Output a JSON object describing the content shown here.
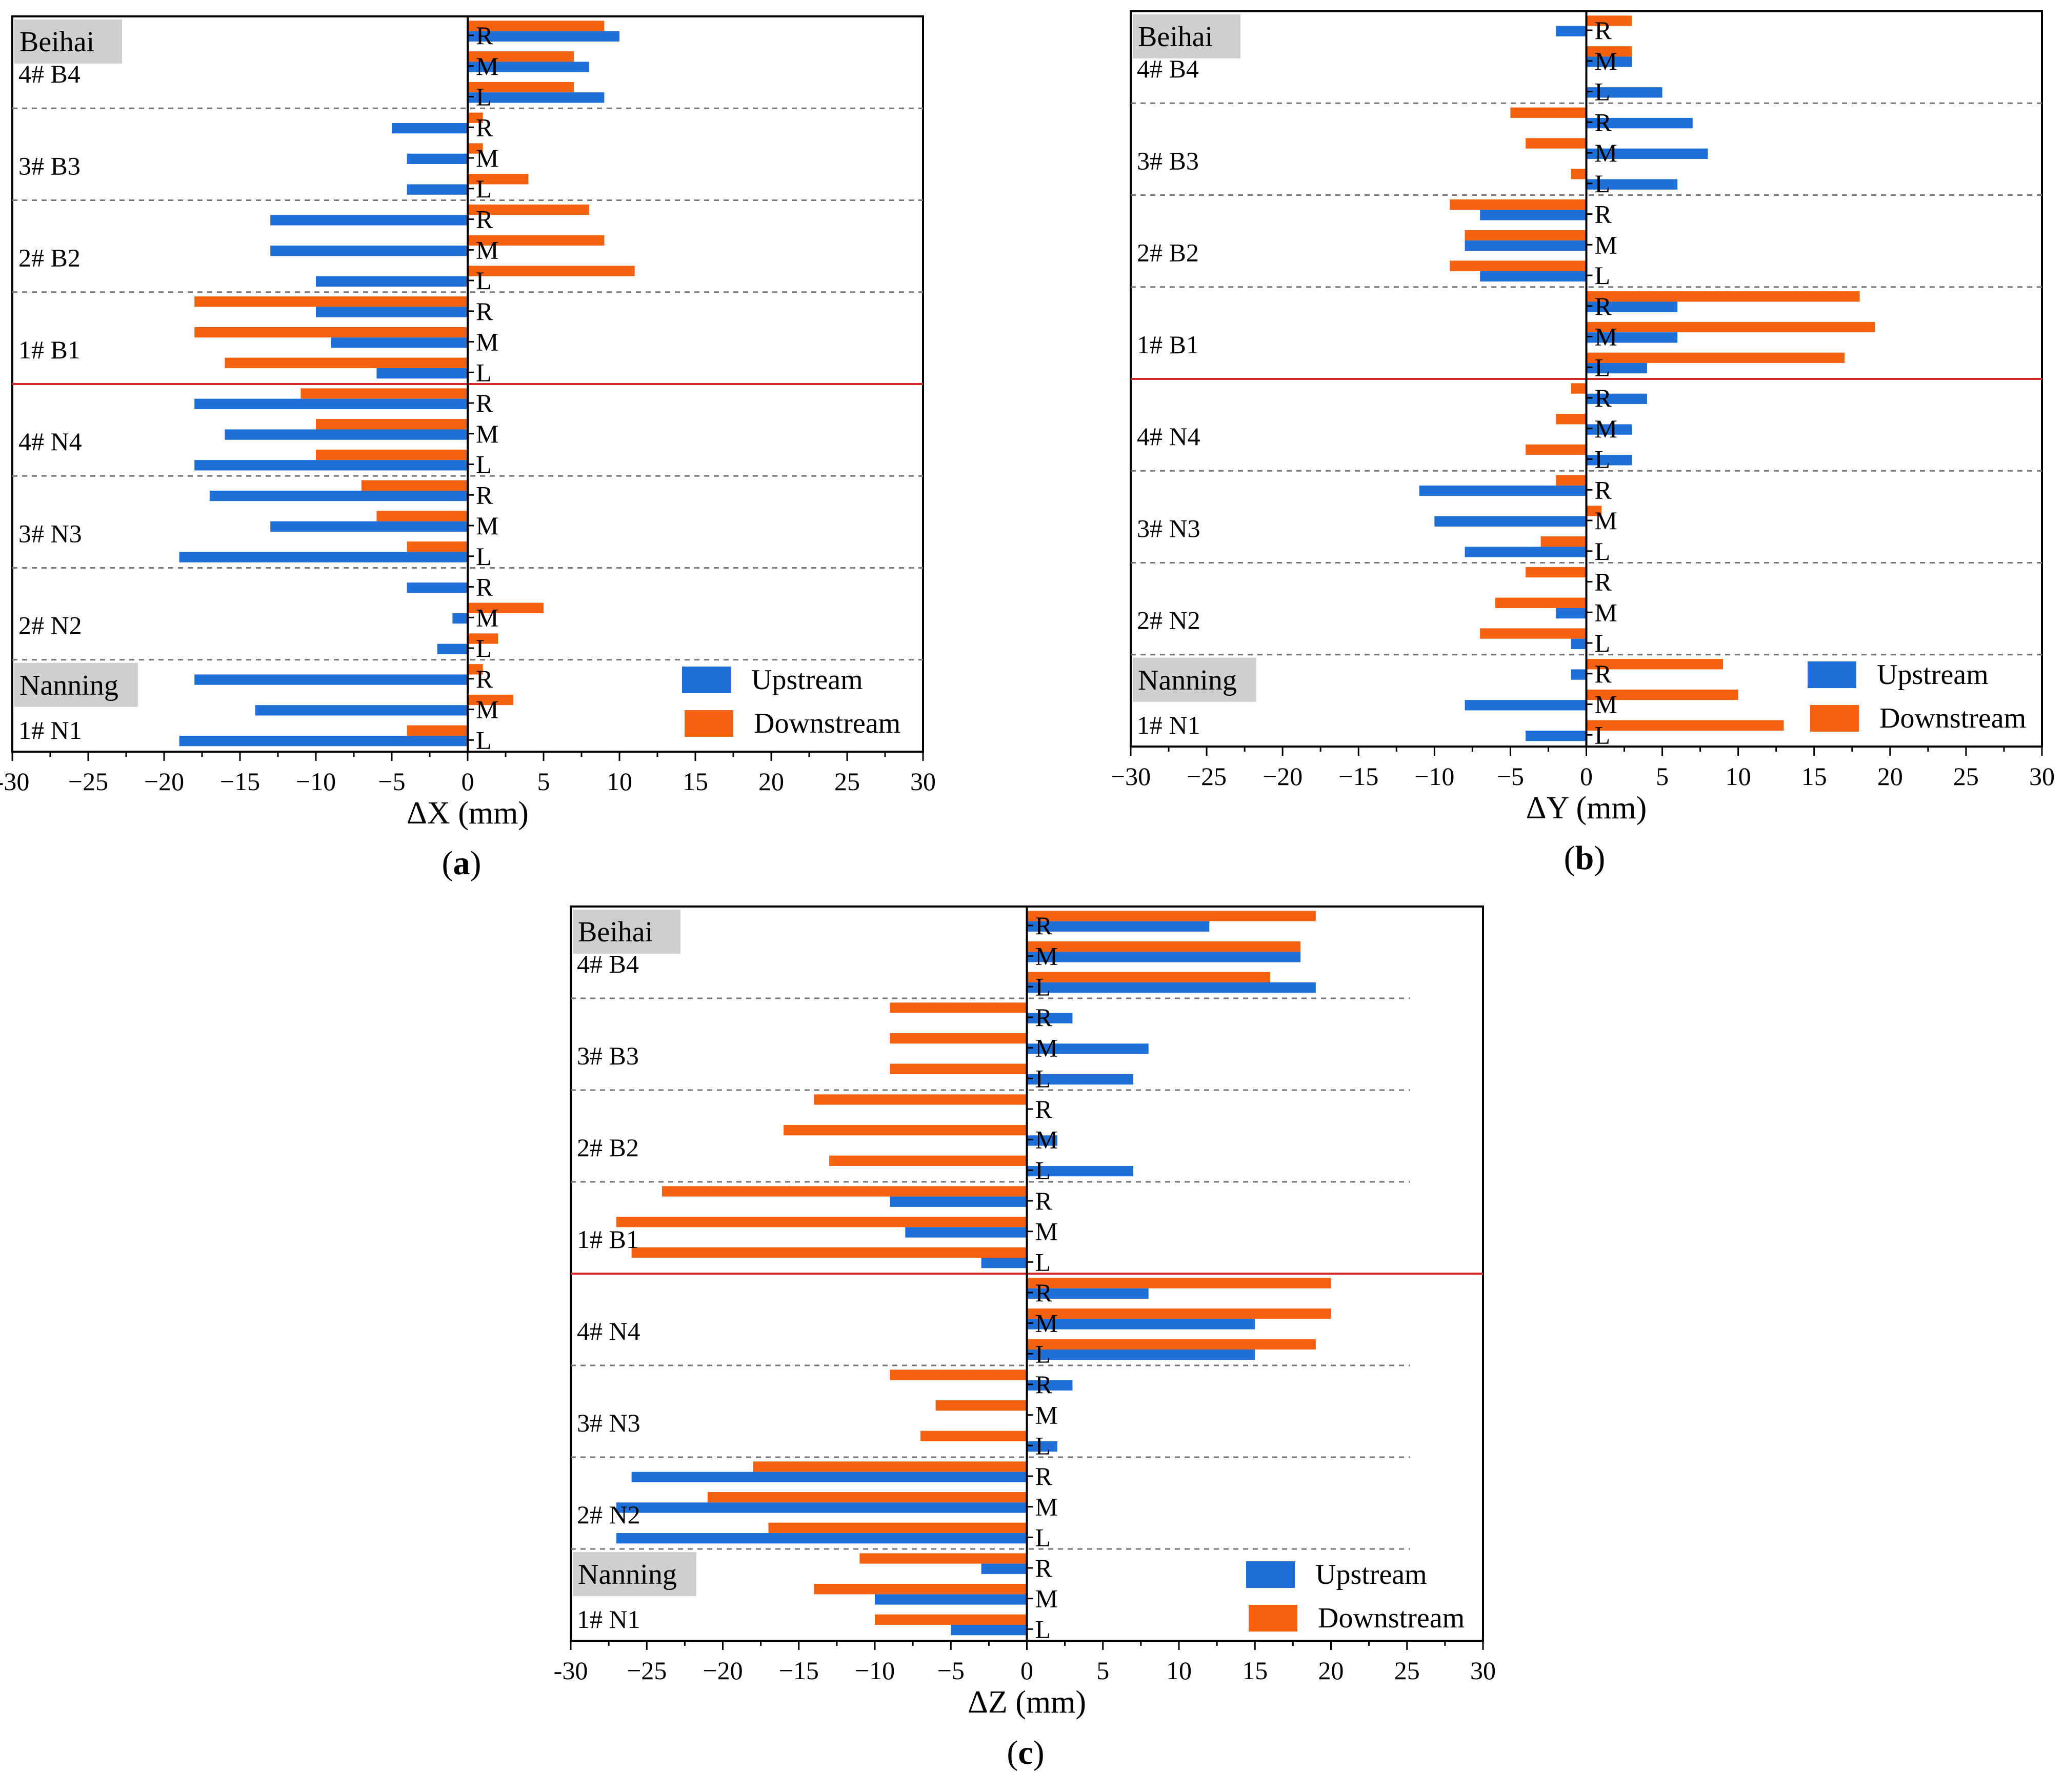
{
  "chart_data": [
    {
      "type": "bar",
      "panel": "(a)",
      "orientation": "horizontal",
      "xlabel": "ΔX (mm)",
      "xlim": [
        -30,
        30
      ],
      "xticks": [
        "-30",
        "−25",
        "−20",
        "−15",
        "−10",
        "−5",
        "0",
        "5",
        "10",
        "15",
        "20",
        "25",
        "30"
      ],
      "positions": [
        "R",
        "M",
        "L"
      ],
      "groups": [
        "4# B4",
        "3# B3",
        "2# B2",
        "1# B1",
        "4# N4",
        "3# N3",
        "2# N2",
        "1# N1"
      ],
      "station_labels": [
        "Beihai",
        "Nanning"
      ],
      "series": [
        {
          "name": "Upstream",
          "color": "#1f6fd9",
          "values": [
            [
              10,
              8,
              9
            ],
            [
              -5,
              -4,
              -4
            ],
            [
              -13,
              -13,
              -10
            ],
            [
              -10,
              -9,
              -6
            ],
            [
              -18,
              -16,
              -18
            ],
            [
              -17,
              -13,
              -19
            ],
            [
              -4,
              -1,
              -2
            ],
            [
              -18,
              -14,
              -19
            ]
          ]
        },
        {
          "name": "Downstream",
          "color": "#f5620f",
          "values": [
            [
              9,
              7,
              7
            ],
            [
              1,
              1,
              4
            ],
            [
              8,
              9,
              11
            ],
            [
              -18,
              -18,
              -16
            ],
            [
              -11,
              -10,
              -10
            ],
            [
              -7,
              -6,
              -4
            ],
            [
              0,
              5,
              2
            ],
            [
              1,
              3,
              -4
            ]
          ]
        }
      ]
    },
    {
      "type": "bar",
      "panel": "(b)",
      "orientation": "horizontal",
      "xlabel": "ΔY (mm)",
      "xlim": [
        -30,
        30
      ],
      "xticks": [
        "−30",
        "−25",
        "−20",
        "−15",
        "−10",
        "−5",
        "0",
        "5",
        "10",
        "15",
        "20",
        "25",
        "30"
      ],
      "positions": [
        "R",
        "M",
        "L"
      ],
      "groups": [
        "4# B4",
        "3# B3",
        "2# B2",
        "1# B1",
        "4# N4",
        "3# N3",
        "2# N2",
        "1# N1"
      ],
      "station_labels": [
        "Beihai",
        "Nanning"
      ],
      "series": [
        {
          "name": "Upstream",
          "color": "#1f6fd9",
          "values": [
            [
              -2,
              3,
              5
            ],
            [
              7,
              8,
              6
            ],
            [
              -7,
              -8,
              -7
            ],
            [
              6,
              6,
              4
            ],
            [
              4,
              3,
              3
            ],
            [
              -11,
              -10,
              -8
            ],
            [
              0,
              -2,
              -1
            ],
            [
              -1,
              -8,
              -4
            ]
          ]
        },
        {
          "name": "Downstream",
          "color": "#f5620f",
          "values": [
            [
              3,
              3,
              0
            ],
            [
              -5,
              -4,
              -1
            ],
            [
              -9,
              -8,
              -9
            ],
            [
              18,
              19,
              17
            ],
            [
              -1,
              -2,
              -4
            ],
            [
              -2,
              1,
              -3
            ],
            [
              -4,
              -6,
              -7
            ],
            [
              9,
              10,
              13
            ]
          ]
        }
      ]
    },
    {
      "type": "bar",
      "panel": "(c)",
      "orientation": "horizontal",
      "xlabel": "ΔZ (mm)",
      "xlim": [
        -30,
        30
      ],
      "xticks": [
        "-30",
        "−25",
        "−20",
        "−15",
        "−10",
        "−5",
        "0",
        "5",
        "10",
        "15",
        "20",
        "25",
        "30"
      ],
      "positions": [
        "R",
        "M",
        "L"
      ],
      "groups": [
        "4# B4",
        "3# B3",
        "2# B2",
        "1# B1",
        "4# N4",
        "3# N3",
        "2# N2",
        "1# N1"
      ],
      "station_labels": [
        "Beihai",
        "Nanning"
      ],
      "series": [
        {
          "name": "Upstream",
          "color": "#1f6fd9",
          "values": [
            [
              12,
              18,
              19
            ],
            [
              3,
              8,
              7
            ],
            [
              0,
              2,
              7
            ],
            [
              -9,
              -8,
              -3
            ],
            [
              8,
              15,
              15
            ],
            [
              3,
              0,
              2
            ],
            [
              -26,
              -27,
              -27
            ],
            [
              -3,
              -10,
              -5
            ]
          ]
        },
        {
          "name": "Downstream",
          "color": "#f5620f",
          "values": [
            [
              19,
              18,
              16
            ],
            [
              -9,
              -9,
              -9
            ],
            [
              -14,
              -16,
              -13
            ],
            [
              -24,
              -27,
              -26
            ],
            [
              20,
              20,
              19
            ],
            [
              -9,
              -6,
              -7
            ],
            [
              -18,
              -21,
              -17
            ],
            [
              -11,
              -14,
              -10
            ]
          ]
        }
      ]
    }
  ]
}
